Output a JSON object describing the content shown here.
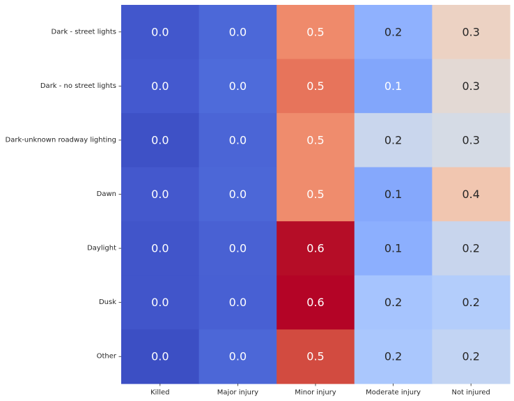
{
  "chart_data": {
    "type": "heatmap",
    "title": "",
    "xlabel": "",
    "ylabel": "",
    "x_categories": [
      "Killed",
      "Major injury",
      "Minor injury",
      "Moderate injury",
      "Not injured"
    ],
    "y_categories": [
      "Dark -  street lights",
      "Dark - no street lights",
      "Dark-unknown roadway lighting",
      "Dawn",
      "Daylight",
      "Dusk",
      "Other"
    ],
    "values": [
      [
        0.0,
        0.0,
        0.5,
        0.2,
        0.3
      ],
      [
        0.0,
        0.0,
        0.5,
        0.1,
        0.3
      ],
      [
        0.0,
        0.0,
        0.5,
        0.2,
        0.3
      ],
      [
        0.0,
        0.0,
        0.5,
        0.1,
        0.4
      ],
      [
        0.0,
        0.0,
        0.6,
        0.1,
        0.2
      ],
      [
        0.0,
        0.0,
        0.6,
        0.2,
        0.2
      ],
      [
        0.0,
        0.0,
        0.5,
        0.2,
        0.2
      ]
    ],
    "labels": [
      [
        "0.0",
        "0.0",
        "0.5",
        "0.2",
        "0.3"
      ],
      [
        "0.0",
        "0.0",
        "0.5",
        "0.1",
        "0.3"
      ],
      [
        "0.0",
        "0.0",
        "0.5",
        "0.2",
        "0.3"
      ],
      [
        "0.0",
        "0.0",
        "0.5",
        "0.1",
        "0.4"
      ],
      [
        "0.0",
        "0.0",
        "0.6",
        "0.1",
        "0.2"
      ],
      [
        "0.0",
        "0.0",
        "0.6",
        "0.2",
        "0.2"
      ],
      [
        "0.0",
        "0.0",
        "0.5",
        "0.2",
        "0.2"
      ]
    ],
    "cell_colors": [
      [
        "#4257cc",
        "#4c68d8",
        "#ef8a6b",
        "#8fb1fe",
        "#ecd2c3"
      ],
      [
        "#4459cf",
        "#4e6bda",
        "#e7745b",
        "#82a6fb",
        "#e3d9d4"
      ],
      [
        "#3e51c6",
        "#4b65d6",
        "#ef8c6d",
        "#c9d6ed",
        "#d5dbe5"
      ],
      [
        "#4458cd",
        "#4c67d7",
        "#ef8c6d",
        "#85a8fc",
        "#f1c6b0"
      ],
      [
        "#4155ca",
        "#4961d3",
        "#b50d27",
        "#8caffe",
        "#c8d5ed"
      ],
      [
        "#4155ca",
        "#4860d3",
        "#b40426",
        "#a6c4fe",
        "#b3cdfb"
      ],
      [
        "#3c4fc4",
        "#4c67d7",
        "#d24b40",
        "#aac7fd",
        "#c2d4f3"
      ]
    ],
    "label_colors": [
      [
        "#ffffff",
        "#ffffff",
        "#ffffff",
        "#262626",
        "#262626"
      ],
      [
        "#ffffff",
        "#ffffff",
        "#ffffff",
        "#ffffff",
        "#262626"
      ],
      [
        "#ffffff",
        "#ffffff",
        "#ffffff",
        "#262626",
        "#262626"
      ],
      [
        "#ffffff",
        "#ffffff",
        "#ffffff",
        "#262626",
        "#262626"
      ],
      [
        "#ffffff",
        "#ffffff",
        "#ffffff",
        "#262626",
        "#262626"
      ],
      [
        "#ffffff",
        "#ffffff",
        "#ffffff",
        "#262626",
        "#262626"
      ],
      [
        "#ffffff",
        "#ffffff",
        "#ffffff",
        "#262626",
        "#262626"
      ]
    ],
    "colormap": "coolwarm",
    "colorbar": false,
    "grid": false,
    "legend": "none"
  }
}
